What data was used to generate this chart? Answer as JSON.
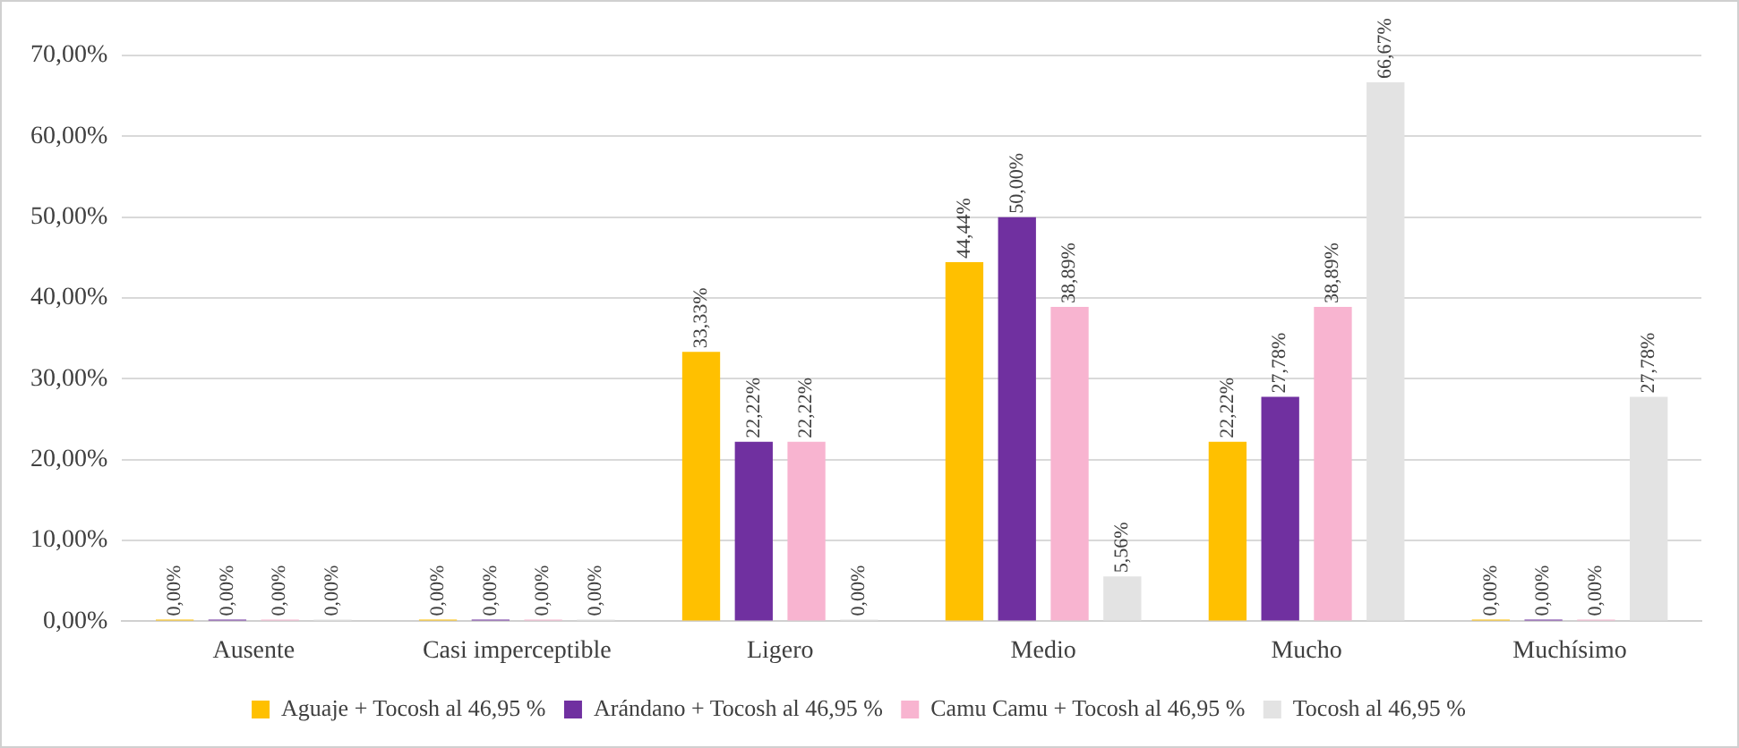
{
  "chart_data": {
    "type": "bar",
    "categories": [
      "Ausente",
      "Casi imperceptible",
      "Ligero",
      "Medio",
      "Mucho",
      "Muchísimo"
    ],
    "series": [
      {
        "name": "Aguaje + Tocosh al 46,95 %",
        "color": "#ffc000",
        "values": [
          0,
          0,
          33.33,
          44.44,
          22.22,
          0
        ],
        "value_labels": [
          "0,00%",
          "0,00%",
          "33,33%",
          "44,44%",
          "22,22%",
          "0,00%"
        ]
      },
      {
        "name": "Arándano + Tocosh al 46,95 %",
        "color": "#7030a0",
        "values": [
          0,
          0,
          22.22,
          50,
          27.78,
          0
        ],
        "value_labels": [
          "0,00%",
          "0,00%",
          "22,22%",
          "50,00%",
          "27,78%",
          "0,00%"
        ]
      },
      {
        "name": "Camu Camu + Tocosh al 46,95 %",
        "color": "#f8b4d0",
        "values": [
          0,
          0,
          22.22,
          38.89,
          38.89,
          0
        ],
        "value_labels": [
          "0,00%",
          "0,00%",
          "22,22%",
          "38,89%",
          "38,89%",
          "0,00%"
        ]
      },
      {
        "name": "Tocosh al 46,95 %",
        "color": "#e3e3e3",
        "values": [
          0,
          0,
          0,
          5.56,
          66.67,
          27.78
        ],
        "value_labels": [
          "0,00%",
          "0,00%",
          "0,00%",
          "5,56%",
          "66,67%",
          "27,78%"
        ]
      }
    ],
    "ylim": [
      0,
      70
    ],
    "yticks": [
      {
        "value": 0,
        "label": "0,00%"
      },
      {
        "value": 10,
        "label": "10,00%"
      },
      {
        "value": 20,
        "label": "20,00%"
      },
      {
        "value": 30,
        "label": "30,00%"
      },
      {
        "value": 40,
        "label": "40,00%"
      },
      {
        "value": 50,
        "label": "50,00%"
      },
      {
        "value": 60,
        "label": "60,00%"
      },
      {
        "value": 70,
        "label": "70,00%"
      }
    ],
    "grid": "y",
    "legend": "bottom"
  }
}
